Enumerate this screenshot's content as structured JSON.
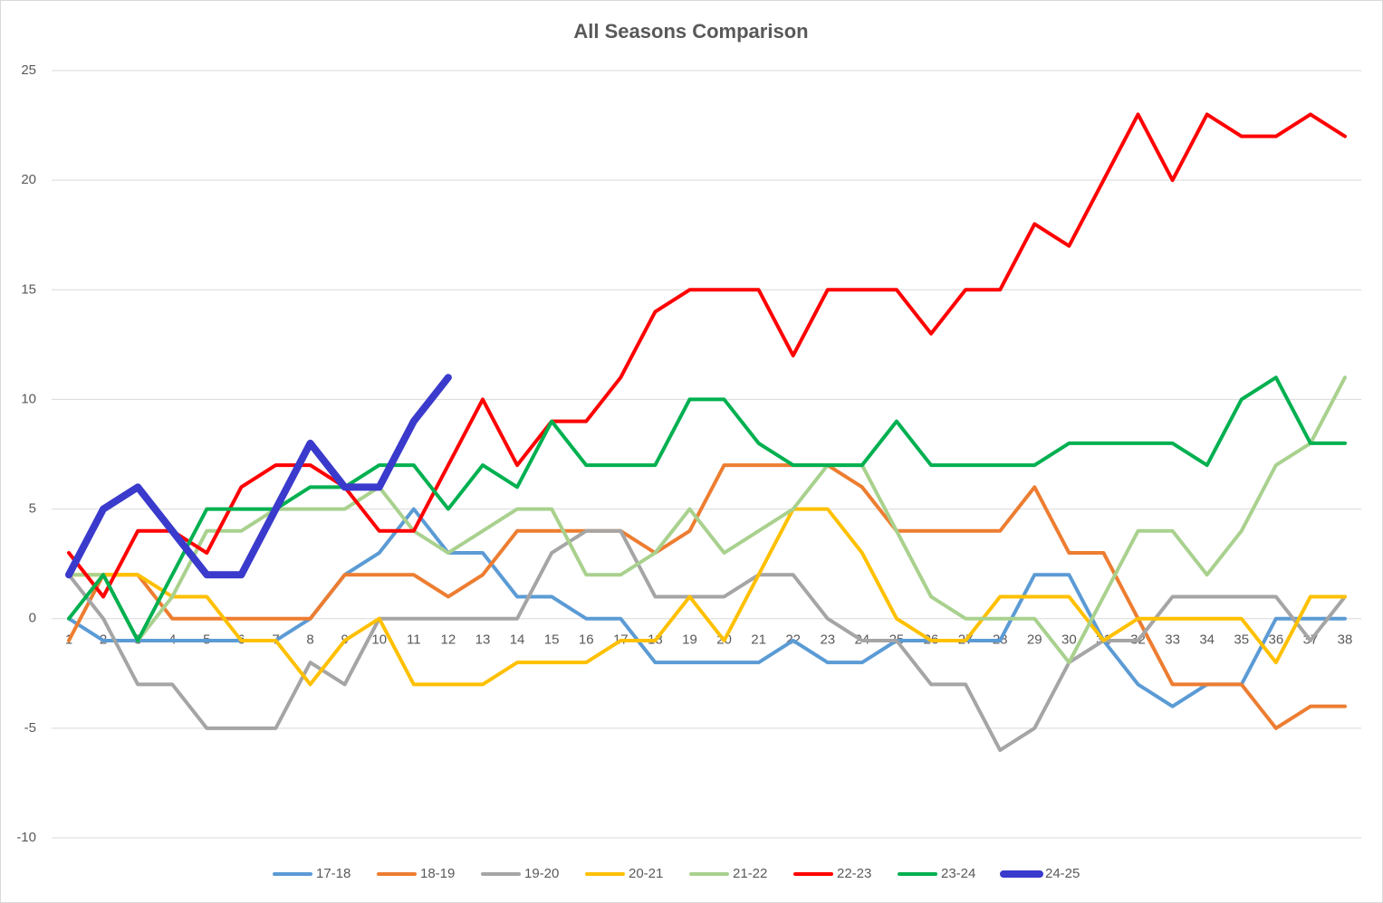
{
  "chart_data": {
    "type": "line",
    "title": "All Seasons Comparison",
    "categories": [
      1,
      2,
      3,
      4,
      5,
      6,
      7,
      8,
      9,
      10,
      11,
      12,
      13,
      14,
      15,
      16,
      17,
      18,
      19,
      20,
      21,
      22,
      23,
      24,
      25,
      26,
      27,
      28,
      29,
      30,
      31,
      32,
      33,
      34,
      35,
      36,
      37,
      38
    ],
    "ylim": [
      -10,
      25
    ],
    "yticks": [
      -10,
      -5,
      0,
      5,
      10,
      15,
      20,
      25
    ],
    "grid": true,
    "legend": "bottom",
    "series": [
      {
        "name": "17-18",
        "color": "#5b9bd5",
        "values": [
          0,
          -1,
          -1,
          -1,
          -1,
          -1,
          -1,
          0,
          2,
          3,
          5,
          3,
          3,
          1,
          1,
          0,
          0,
          -2,
          -2,
          -2,
          -2,
          -1,
          -2,
          -2,
          -1,
          -1,
          -1,
          -1,
          2,
          2,
          -1,
          -3,
          -4,
          -3,
          -3,
          0,
          0,
          0
        ]
      },
      {
        "name": "18-19",
        "color": "#ed7d31",
        "values": [
          -1,
          2,
          2,
          0,
          0,
          0,
          0,
          0,
          2,
          2,
          2,
          1,
          2,
          4,
          4,
          4,
          4,
          3,
          4,
          7,
          7,
          7,
          7,
          6,
          4,
          4,
          4,
          4,
          6,
          3,
          3,
          0,
          -3,
          -3,
          -3,
          -5,
          -4,
          -4
        ]
      },
      {
        "name": "19-20",
        "color": "#a5a5a5",
        "values": [
          2,
          0,
          -3,
          -3,
          -5,
          -5,
          -5,
          -2,
          -3,
          0,
          0,
          0,
          0,
          0,
          3,
          4,
          4,
          1,
          1,
          1,
          2,
          2,
          0,
          -1,
          -1,
          -3,
          -3,
          -6,
          -5,
          -2,
          -1,
          -1,
          1,
          1,
          1,
          1,
          -1,
          1
        ]
      },
      {
        "name": "20-21",
        "color": "#ffc000",
        "values": [
          2,
          2,
          2,
          1,
          1,
          -1,
          -1,
          -3,
          -1,
          0,
          -3,
          -3,
          -3,
          -2,
          -2,
          -2,
          -1,
          -1,
          1,
          -1,
          2,
          5,
          5,
          3,
          0,
          -1,
          -1,
          1,
          1,
          1,
          -1,
          0,
          0,
          0,
          0,
          -2,
          1,
          1
        ]
      },
      {
        "name": "21-22",
        "color": "#a9d18e",
        "values": [
          2,
          2,
          -1,
          1,
          4,
          4,
          5,
          5,
          5,
          6,
          4,
          3,
          4,
          5,
          5,
          2,
          2,
          3,
          5,
          3,
          4,
          5,
          7,
          7,
          4,
          1,
          0,
          0,
          0,
          -2,
          1,
          4,
          4,
          2,
          4,
          7,
          8,
          11
        ]
      },
      {
        "name": "22-23",
        "color": "#ff0000",
        "values": [
          3,
          1,
          4,
          4,
          3,
          6,
          7,
          7,
          6,
          4,
          4,
          7,
          10,
          7,
          9,
          9,
          11,
          14,
          15,
          15,
          15,
          12,
          15,
          15,
          15,
          13,
          15,
          15,
          18,
          17,
          20,
          23,
          20,
          23,
          22,
          22,
          23,
          22
        ]
      },
      {
        "name": "23-24",
        "color": "#00b050",
        "values": [
          0,
          2,
          -1,
          2,
          5,
          5,
          5,
          6,
          6,
          7,
          7,
          5,
          7,
          6,
          9,
          7,
          7,
          7,
          10,
          10,
          8,
          7,
          7,
          7,
          9,
          7,
          7,
          7,
          7,
          8,
          8,
          8,
          8,
          7,
          10,
          11,
          8,
          8
        ]
      },
      {
        "name": "24-25",
        "color": "#3a3acc",
        "values": [
          2,
          5,
          6,
          4,
          2,
          2,
          5,
          8,
          6,
          6,
          9,
          11,
          null,
          null,
          null,
          null,
          null,
          null,
          null,
          null,
          null,
          null,
          null,
          null,
          null,
          null,
          null,
          null,
          null,
          null,
          null,
          null,
          null,
          null,
          null,
          null,
          null,
          null
        ]
      }
    ]
  }
}
